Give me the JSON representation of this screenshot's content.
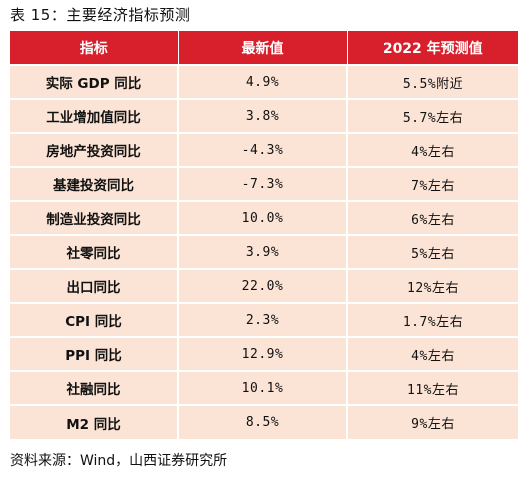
{
  "caption": "表 15：主要经济指标预测",
  "table": {
    "headers": [
      "指标",
      "最新值",
      "2022 年预测值"
    ],
    "rows": [
      {
        "indicator": "实际 GDP 同比",
        "latest": "4.9%",
        "forecast": "5.5%附近"
      },
      {
        "indicator": "工业增加值同比",
        "latest": "3.8%",
        "forecast": "5.7%左右"
      },
      {
        "indicator": "房地产投资同比",
        "latest": "-4.3%",
        "forecast": "4%左右"
      },
      {
        "indicator": "基建投资同比",
        "latest": "-7.3%",
        "forecast": "7%左右"
      },
      {
        "indicator": "制造业投资同比",
        "latest": "10.0%",
        "forecast": "6%左右"
      },
      {
        "indicator": "社零同比",
        "latest": "3.9%",
        "forecast": "5%左右"
      },
      {
        "indicator": "出口同比",
        "latest": "22.0%",
        "forecast": "12%左右"
      },
      {
        "indicator": "CPI 同比",
        "latest": "2.3%",
        "forecast": "1.7%左右"
      },
      {
        "indicator": "PPI 同比",
        "latest": "12.9%",
        "forecast": "4%左右"
      },
      {
        "indicator": "社融同比",
        "latest": "10.1%",
        "forecast": "11%左右"
      },
      {
        "indicator": "M2 同比",
        "latest": "8.5%",
        "forecast": "9%左右"
      }
    ]
  },
  "source": "资料来源：Wind，山西证券研究所",
  "colors": {
    "header_bg": "#d7202b",
    "row_bg": "#fbe4d6"
  }
}
